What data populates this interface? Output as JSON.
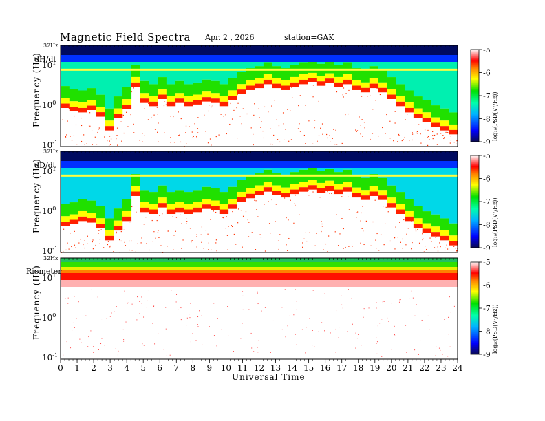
{
  "header": {
    "title": "Magnetic  Field  Spectra",
    "date": "Apr. 2  , 2026",
    "station": "station=GAK"
  },
  "colors": {
    "scale": [
      "#0a0a70",
      "#0000ff",
      "#00c8ff",
      "#00ff99",
      "#00e000",
      "#ffff00",
      "#ff8000",
      "#ff0000",
      "#ffffff"
    ]
  },
  "chart_data": [
    {
      "type": "heatmap",
      "panel_label": "dH/dt",
      "ylabel": "Frequency  (Hz)",
      "y_top_label": "32Hz",
      "y_ticks": [
        {
          "base": "10",
          "exp": "1",
          "value": 10
        },
        {
          "base": "10",
          "exp": "0",
          "value": 1
        },
        {
          "base": "10",
          "exp": "-1",
          "value": 0.1
        }
      ],
      "ylim": [
        0.1,
        32
      ],
      "xlim": [
        0,
        24
      ],
      "colorbar": {
        "label": "log₁₀(PSD(V²/Hz))",
        "ticks": [
          "-5",
          "-6",
          "-7",
          "-8",
          "-9"
        ],
        "range": [
          -9,
          -5
        ]
      },
      "noise_floor_hz": [
        0.9,
        0.75,
        0.7,
        0.8,
        0.55,
        0.25,
        0.5,
        0.85,
        3.0,
        1.2,
        1.0,
        1.5,
        1.0,
        1.2,
        1.0,
        1.1,
        1.3,
        1.2,
        1.0,
        1.4,
        2.0,
        2.5,
        2.8,
        3.5,
        2.8,
        2.5,
        3.0,
        3.5,
        4.0,
        3.2,
        3.8,
        3.0,
        3.5,
        2.5,
        2.2,
        2.8,
        2.2,
        1.5,
        1.0,
        0.7,
        0.5,
        0.4,
        0.3,
        0.25,
        0.2
      ],
      "line_hz": 8
    },
    {
      "type": "heatmap",
      "panel_label": "dD/dt",
      "ylabel": "Frequency  (Hz)",
      "y_top_label": "32Hz",
      "y_ticks": [
        {
          "base": "10",
          "exp": "1",
          "value": 10
        },
        {
          "base": "10",
          "exp": "0",
          "value": 1
        },
        {
          "base": "10",
          "exp": "-1",
          "value": 0.1
        }
      ],
      "ylim": [
        0.1,
        32
      ],
      "xlim": [
        0,
        24
      ],
      "colorbar": {
        "label": "log₁₀(PSD(V²/Hz))",
        "ticks": [
          "-5",
          "-6",
          "-7",
          "-8",
          "-9"
        ],
        "range": [
          -9,
          -5
        ]
      },
      "noise_floor_hz": [
        0.45,
        0.5,
        0.6,
        0.55,
        0.4,
        0.2,
        0.35,
        0.6,
        2.5,
        1.0,
        0.9,
        1.3,
        0.9,
        1.0,
        0.9,
        1.0,
        1.2,
        1.1,
        0.9,
        1.2,
        1.8,
        2.2,
        2.6,
        3.2,
        2.6,
        2.3,
        2.8,
        3.2,
        3.6,
        3.0,
        3.4,
        2.8,
        3.2,
        2.3,
        2.0,
        2.5,
        2.0,
        1.3,
        0.9,
        0.6,
        0.4,
        0.3,
        0.25,
        0.2,
        0.15
      ],
      "line_hz": 8
    },
    {
      "type": "heatmap",
      "panel_label": "Riometer",
      "ylabel": "Frequency  (Hz)",
      "y_top_label": "32Hz",
      "y_ticks": [
        {
          "base": "10",
          "exp": "1",
          "value": 10
        },
        {
          "base": "10",
          "exp": "0",
          "value": 1
        },
        {
          "base": "10",
          "exp": "-1",
          "value": 0.1
        }
      ],
      "ylim": [
        0.1,
        32
      ],
      "xlim": [
        0,
        24
      ],
      "colorbar": {
        "label": "log₁₀(PSD(V²/Hz))",
        "ticks": [
          "-5",
          "-6",
          "-7",
          "-8",
          "-9"
        ],
        "range": [
          -9,
          -5
        ]
      },
      "noise_floor_hz": [
        11,
        11,
        11,
        11,
        11,
        11,
        11,
        11,
        11,
        11,
        11,
        11,
        11,
        11,
        11,
        11,
        11,
        11,
        11,
        11,
        11,
        11,
        11,
        11,
        11,
        11,
        11,
        11,
        11,
        11,
        11,
        11,
        11,
        11,
        11,
        11,
        11,
        11,
        11,
        11,
        11,
        11,
        11,
        11,
        11
      ],
      "line_hz": null
    }
  ],
  "x_axis": {
    "label": "Universal  Time",
    "ticks": [
      "0",
      "1",
      "2",
      "3",
      "4",
      "5",
      "6",
      "7",
      "8",
      "9",
      "10",
      "11",
      "12",
      "13",
      "14",
      "15",
      "16",
      "17",
      "18",
      "19",
      "20",
      "21",
      "22",
      "23",
      "24"
    ]
  }
}
